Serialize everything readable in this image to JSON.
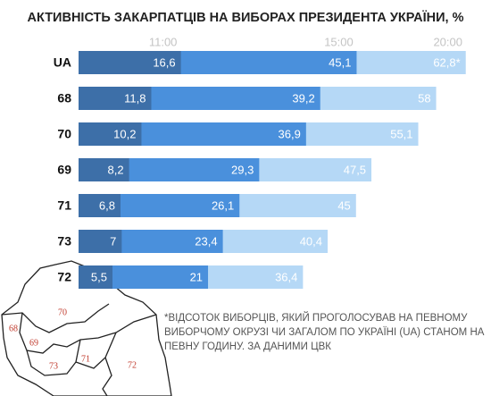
{
  "chart_data": {
    "type": "bar",
    "orientation": "horizontal",
    "overlap": true,
    "title": "АКТИВНІСТЬ ЗАКАРПАТЦІВ НА ВИБОРАХ ПРЕЗИДЕНТА УКРАЇНИ, %",
    "categories": [
      "UA",
      "68",
      "70",
      "69",
      "71",
      "73",
      "72"
    ],
    "series": [
      {
        "name": "11:00",
        "color": "#3d6fa8",
        "values": [
          16.6,
          11.8,
          10.2,
          8.2,
          6.8,
          7,
          5.5
        ],
        "value_labels": [
          "16,6",
          "11,8",
          "10,2",
          "8,2",
          "6,8",
          "7",
          "5,5"
        ]
      },
      {
        "name": "15:00",
        "color": "#4a90dc",
        "values": [
          45.1,
          39.2,
          36.9,
          29.3,
          26.1,
          23.4,
          21
        ],
        "value_labels": [
          "45,1",
          "39,2",
          "36,9",
          "29,3",
          "26,1",
          "23,4",
          "21"
        ]
      },
      {
        "name": "20:00",
        "color": "#b5d8f6",
        "values": [
          62.8,
          58,
          55.1,
          47.5,
          45,
          40.4,
          36.4
        ],
        "value_labels": [
          "62,8*",
          "58",
          "55,1",
          "47,5",
          "45",
          "40,4",
          "36,4"
        ]
      }
    ],
    "xlim": [
      0,
      64
    ],
    "footnote_lines": [
      "*ВІДСОТОК ВИБОРЦІВ, ЯКИЙ ПРОГОЛОСУВАВ НА ПЕВНОМУ",
      "ВИБОРЧОМУ ОКРУЗІ ЧИ ЗАГАЛОМ ПО УКРАЇНІ (UA) СТАНОМ НА",
      "ПЕВНУ ГОДИНУ. ЗА ДАНИМИ ЦВК"
    ],
    "map_labels": [
      "70",
      "68",
      "69",
      "71",
      "73",
      "72"
    ]
  }
}
